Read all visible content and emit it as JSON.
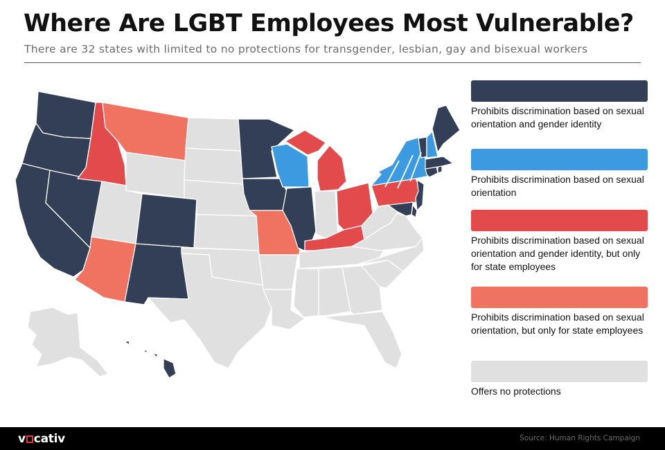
{
  "header": {
    "title": "Where Are LGBT Employees Most Vulnerable?",
    "subtitle": "There are 32 states with limited to no protections for transgender, lesbian, gay and bisexual workers"
  },
  "colors": {
    "full": "#333f57",
    "orientation": "#3c9ae0",
    "state_full": "#e24a4b",
    "state_orientation": "#ef7360",
    "none": "#e0e0e0"
  },
  "legend": [
    {
      "category": "full",
      "label": "Prohibits discrimination based on sexual orientation and gender identity"
    },
    {
      "category": "orientation",
      "label": "Prohibits discrimination based on sexual orientation"
    },
    {
      "category": "state_full",
      "label": "Prohibits discrimination based on sexual orientation and gender identity, but only for state employees"
    },
    {
      "category": "state_orientation",
      "label": "Prohibits discrimination based on sexual orientation, but only for state employees"
    },
    {
      "category": "none",
      "label": "Offers no protections"
    }
  ],
  "states": [
    {
      "abbr": "WA",
      "category": "full"
    },
    {
      "abbr": "OR",
      "category": "full"
    },
    {
      "abbr": "CA",
      "category": "full"
    },
    {
      "abbr": "NV",
      "category": "full"
    },
    {
      "abbr": "ID",
      "category": "state_full"
    },
    {
      "abbr": "MT",
      "category": "state_orientation"
    },
    {
      "abbr": "WY",
      "category": "none"
    },
    {
      "abbr": "UT",
      "category": "none"
    },
    {
      "abbr": "AZ",
      "category": "state_orientation"
    },
    {
      "abbr": "CO",
      "category": "full"
    },
    {
      "abbr": "NM",
      "category": "full"
    },
    {
      "abbr": "ND",
      "category": "none"
    },
    {
      "abbr": "SD",
      "category": "none"
    },
    {
      "abbr": "NE",
      "category": "none"
    },
    {
      "abbr": "KS",
      "category": "none"
    },
    {
      "abbr": "OK",
      "category": "none"
    },
    {
      "abbr": "TX",
      "category": "none"
    },
    {
      "abbr": "MN",
      "category": "full"
    },
    {
      "abbr": "IA",
      "category": "full"
    },
    {
      "abbr": "MO",
      "category": "state_orientation"
    },
    {
      "abbr": "AR",
      "category": "none"
    },
    {
      "abbr": "LA",
      "category": "none"
    },
    {
      "abbr": "WI",
      "category": "orientation"
    },
    {
      "abbr": "IL",
      "category": "full"
    },
    {
      "abbr": "MI",
      "category": "state_full"
    },
    {
      "abbr": "IN",
      "category": "none"
    },
    {
      "abbr": "OH",
      "category": "state_full"
    },
    {
      "abbr": "KY",
      "category": "state_full"
    },
    {
      "abbr": "TN",
      "category": "none"
    },
    {
      "abbr": "MS",
      "category": "none"
    },
    {
      "abbr": "AL",
      "category": "none"
    },
    {
      "abbr": "GA",
      "category": "none"
    },
    {
      "abbr": "FL",
      "category": "none"
    },
    {
      "abbr": "SC",
      "category": "none"
    },
    {
      "abbr": "NC",
      "category": "none"
    },
    {
      "abbr": "VA",
      "category": "none"
    },
    {
      "abbr": "WV",
      "category": "none"
    },
    {
      "abbr": "PA",
      "category": "state_full"
    },
    {
      "abbr": "NY",
      "category": "orientation"
    },
    {
      "abbr": "NJ",
      "category": "full"
    },
    {
      "abbr": "DE",
      "category": "full"
    },
    {
      "abbr": "MD",
      "category": "full"
    },
    {
      "abbr": "CT",
      "category": "full"
    },
    {
      "abbr": "RI",
      "category": "full"
    },
    {
      "abbr": "MA",
      "category": "full"
    },
    {
      "abbr": "VT",
      "category": "full"
    },
    {
      "abbr": "NH",
      "category": "orientation"
    },
    {
      "abbr": "ME",
      "category": "full"
    },
    {
      "abbr": "AK",
      "category": "none"
    },
    {
      "abbr": "HI",
      "category": "full"
    }
  ],
  "footer": {
    "logo_prefix": "v",
    "logo_suffix": "cativ",
    "source": "Source: Human Rights Campaign"
  }
}
